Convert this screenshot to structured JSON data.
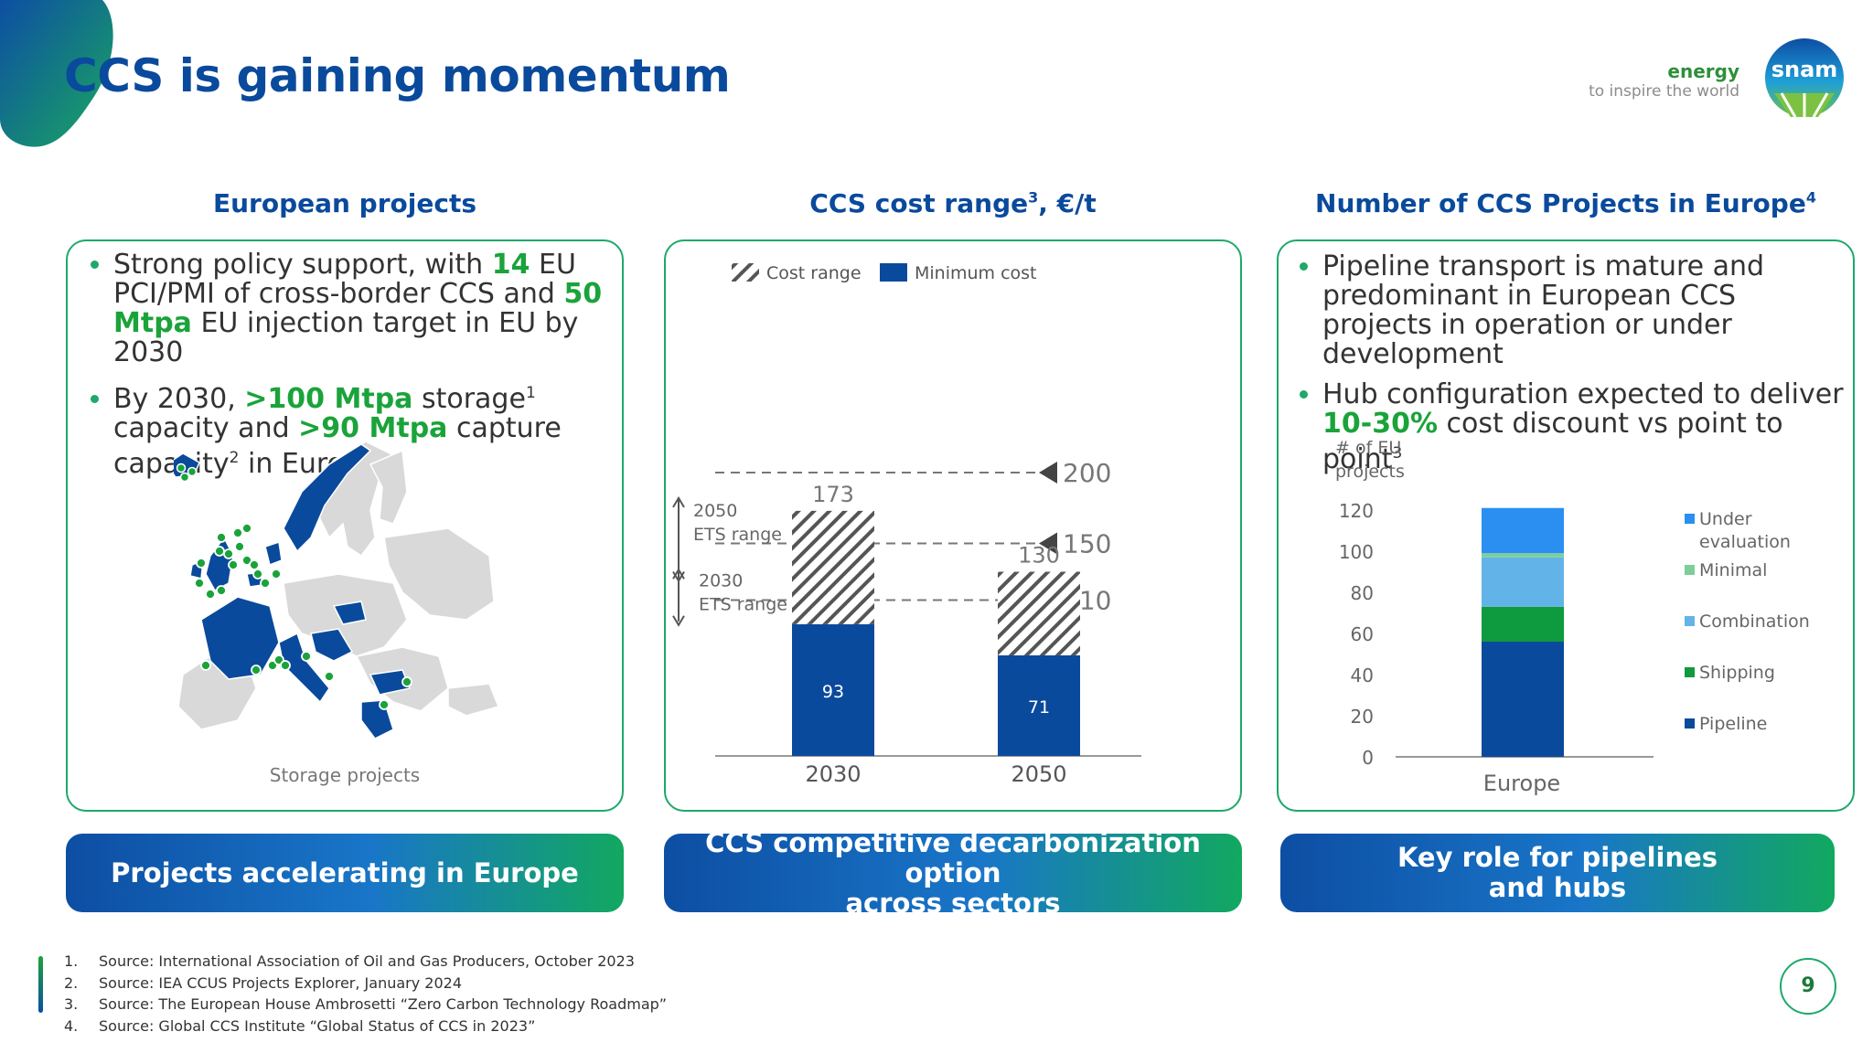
{
  "header": {
    "title": "CCS  is gaining momentum",
    "brand_energy": "energy",
    "brand_tagline": "to inspire the world",
    "logo_text": "snam"
  },
  "columns": {
    "left": {
      "title": "European projects",
      "bullets": [
        {
          "parts": [
            "Strong policy support, with ",
            "14",
            " EU PCI/PMI of cross-border CCS and ",
            "50 Mtpa",
            " EU injection target in EU by 2030"
          ]
        },
        {
          "parts": [
            "By 2030, ",
            ">100 Mtpa",
            " storage",
            "1",
            " capacity and ",
            ">90 Mtpa",
            " capture capacity",
            "2",
            " in Europe"
          ]
        }
      ],
      "map_caption": "Storage projects",
      "banner": "Projects accelerating in Europe"
    },
    "middle": {
      "title": "CCS cost range",
      "title_sup": "3",
      "title_suffix": ", €/t",
      "banner": "CCS competitive decarbonization option\nacross sectors"
    },
    "right": {
      "title": "Number of CCS Projects in Europe",
      "title_sup": "4",
      "bullets": [
        {
          "parts": [
            "Pipeline transport is mature and predominant in European CCS projects in operation or under development"
          ]
        },
        {
          "parts": [
            "Hub configuration expected to deliver ",
            "10-30%",
            " cost discount vs point to point",
            "3"
          ]
        }
      ],
      "banner": "Key role for pipelines\nand hubs"
    }
  },
  "chart_data": [
    {
      "type": "bar",
      "stacked": true,
      "categories": [
        "2030",
        "2050"
      ],
      "series": [
        {
          "name": "Minimum cost",
          "values": [
            93,
            71
          ],
          "color": "#0a4a9c"
        },
        {
          "name": "Cost range",
          "values": [
            80,
            59
          ],
          "pattern": "hatched"
        }
      ],
      "totals": [
        173,
        130
      ],
      "reference_lines": [
        200,
        150,
        110
      ],
      "annotations": [
        "2050\nETS range",
        "2030\nETS range"
      ],
      "ylim": [
        0,
        200
      ]
    },
    {
      "type": "bar",
      "stacked": true,
      "categories": [
        "Europe"
      ],
      "ylabel": "# of EU\nprojects",
      "yticks": [
        0,
        20,
        40,
        60,
        80,
        100,
        120
      ],
      "ylim": [
        0,
        120
      ],
      "series": [
        {
          "name": "Pipeline",
          "values": [
            56
          ],
          "color": "#0a4a9c"
        },
        {
          "name": "Shipping",
          "values": [
            17
          ],
          "color": "#0e9a3e"
        },
        {
          "name": "Combination",
          "values": [
            24
          ],
          "color": "#62b4e8"
        },
        {
          "name": "Minimal",
          "values": [
            2
          ],
          "color": "#7ccf9a"
        },
        {
          "name": "Under evaluation",
          "values": [
            22
          ],
          "color": "#2a8ff0"
        }
      ],
      "legend_position": "right"
    }
  ],
  "footnotes": [
    {
      "n": "1.",
      "text": "Source: International Association of Oil and Gas Producers, October 2023"
    },
    {
      "n": "2.",
      "text": "Source: IEA CCUS Projects Explorer, January 2024"
    },
    {
      "n": "3.",
      "text": "Source: The European House Ambrosetti “Zero Carbon Technology Roadmap”"
    },
    {
      "n": "4.",
      "text": "Source: Global CCS Institute “Global Status of CCS in 2023”"
    }
  ],
  "page_number": "9"
}
